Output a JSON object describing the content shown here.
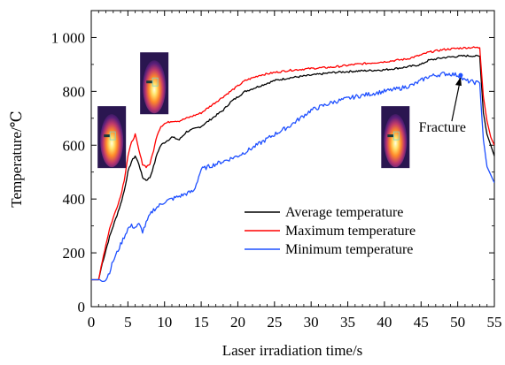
{
  "chart_data": {
    "type": "line",
    "xlabel": "Laser irradiation time/s",
    "ylabel": "Temperature/℃",
    "xlim": [
      0,
      55
    ],
    "ylim": [
      0,
      1100
    ],
    "x_ticks": [
      0,
      5,
      10,
      15,
      20,
      25,
      30,
      35,
      40,
      45,
      50,
      55
    ],
    "x_tick_labels": [
      "0",
      "5",
      "10",
      "15",
      "20",
      "25",
      "30",
      "35",
      "40",
      "45",
      "50",
      "55"
    ],
    "y_ticks": [
      0,
      200,
      400,
      600,
      800,
      1000
    ],
    "y_tick_labels": [
      "0",
      "200",
      "400",
      "600",
      "800",
      "1 000"
    ],
    "grid": false,
    "legend_position": "lower-right",
    "series": [
      {
        "name": "Average temperature",
        "color": "#000000",
        "x": [
          0,
          1,
          1.5,
          2,
          2.5,
          3,
          3.5,
          4,
          4.5,
          5,
          5.5,
          6,
          6.5,
          7,
          7.5,
          8,
          8.5,
          9,
          9.5,
          10,
          11,
          12,
          13,
          14,
          15,
          16,
          17,
          18,
          19,
          20,
          21,
          22,
          23,
          24,
          25,
          27,
          30,
          33,
          36,
          40,
          43,
          45,
          46,
          48,
          50,
          51,
          52,
          53,
          53.5,
          54,
          54.5,
          55
        ],
        "y": [
          100,
          100,
          160,
          210,
          260,
          300,
          340,
          380,
          430,
          500,
          540,
          560,
          530,
          480,
          470,
          480,
          520,
          570,
          600,
          610,
          630,
          620,
          650,
          660,
          670,
          690,
          710,
          730,
          760,
          780,
          800,
          810,
          820,
          830,
          840,
          850,
          860,
          870,
          875,
          880,
          890,
          900,
          915,
          925,
          930,
          932,
          932,
          930,
          720,
          640,
          600,
          560
        ]
      },
      {
        "name": "Maximum temperature",
        "color": "#ff0000",
        "x": [
          0,
          1,
          1.5,
          2,
          2.5,
          3,
          3.5,
          4,
          4.5,
          5,
          5.5,
          6,
          6.5,
          7,
          7.5,
          8,
          8.5,
          9,
          9.5,
          10,
          11,
          12,
          13,
          14,
          15,
          16,
          17,
          18,
          19,
          20,
          21,
          22,
          23,
          24,
          25,
          27,
          30,
          33,
          36,
          40,
          43,
          45,
          46,
          48,
          50,
          51,
          52,
          53,
          53.5,
          54,
          54.5,
          55
        ],
        "y": [
          100,
          100,
          170,
          230,
          290,
          330,
          370,
          410,
          470,
          560,
          610,
          640,
          580,
          530,
          520,
          530,
          580,
          640,
          670,
          680,
          690,
          690,
          700,
          710,
          720,
          740,
          760,
          780,
          800,
          820,
          840,
          850,
          860,
          865,
          870,
          878,
          885,
          890,
          900,
          910,
          920,
          935,
          945,
          955,
          960,
          962,
          963,
          962,
          780,
          690,
          630,
          600
        ]
      },
      {
        "name": "Minimum temperature",
        "color": "#1f50ff",
        "x": [
          0,
          1,
          1.5,
          2,
          2.5,
          3,
          3.5,
          4,
          4.5,
          5,
          5.5,
          6,
          6.5,
          7,
          7.5,
          8,
          8.5,
          9,
          10,
          11,
          12,
          13,
          14,
          15,
          16,
          17,
          18,
          19,
          20,
          22,
          25,
          27,
          30,
          33,
          36,
          38,
          40,
          42,
          44,
          45,
          46,
          48,
          49,
          50,
          51,
          52,
          53,
          53.5,
          54,
          55
        ],
        "y": [
          100,
          100,
          100,
          100,
          130,
          170,
          200,
          230,
          260,
          290,
          300,
          295,
          305,
          280,
          310,
          340,
          360,
          370,
          390,
          400,
          410,
          420,
          430,
          510,
          520,
          530,
          540,
          550,
          560,
          590,
          640,
          670,
          730,
          760,
          780,
          790,
          800,
          810,
          825,
          840,
          855,
          865,
          865,
          860,
          840,
          835,
          830,
          620,
          520,
          460
        ]
      }
    ],
    "legend": [
      "Average temperature",
      "Maximum temperature",
      "Minimum temperature"
    ],
    "annotations": [
      {
        "text": "Fracture",
        "x": 50.4,
        "y": 860
      }
    ],
    "insets": [
      {
        "name": "thermal-image",
        "x_center": 2.8,
        "y_center": 630
      },
      {
        "name": "thermal-image",
        "x_center": 8.6,
        "y_center": 830
      },
      {
        "name": "thermal-image",
        "x_center": 41.5,
        "y_center": 630
      }
    ]
  }
}
